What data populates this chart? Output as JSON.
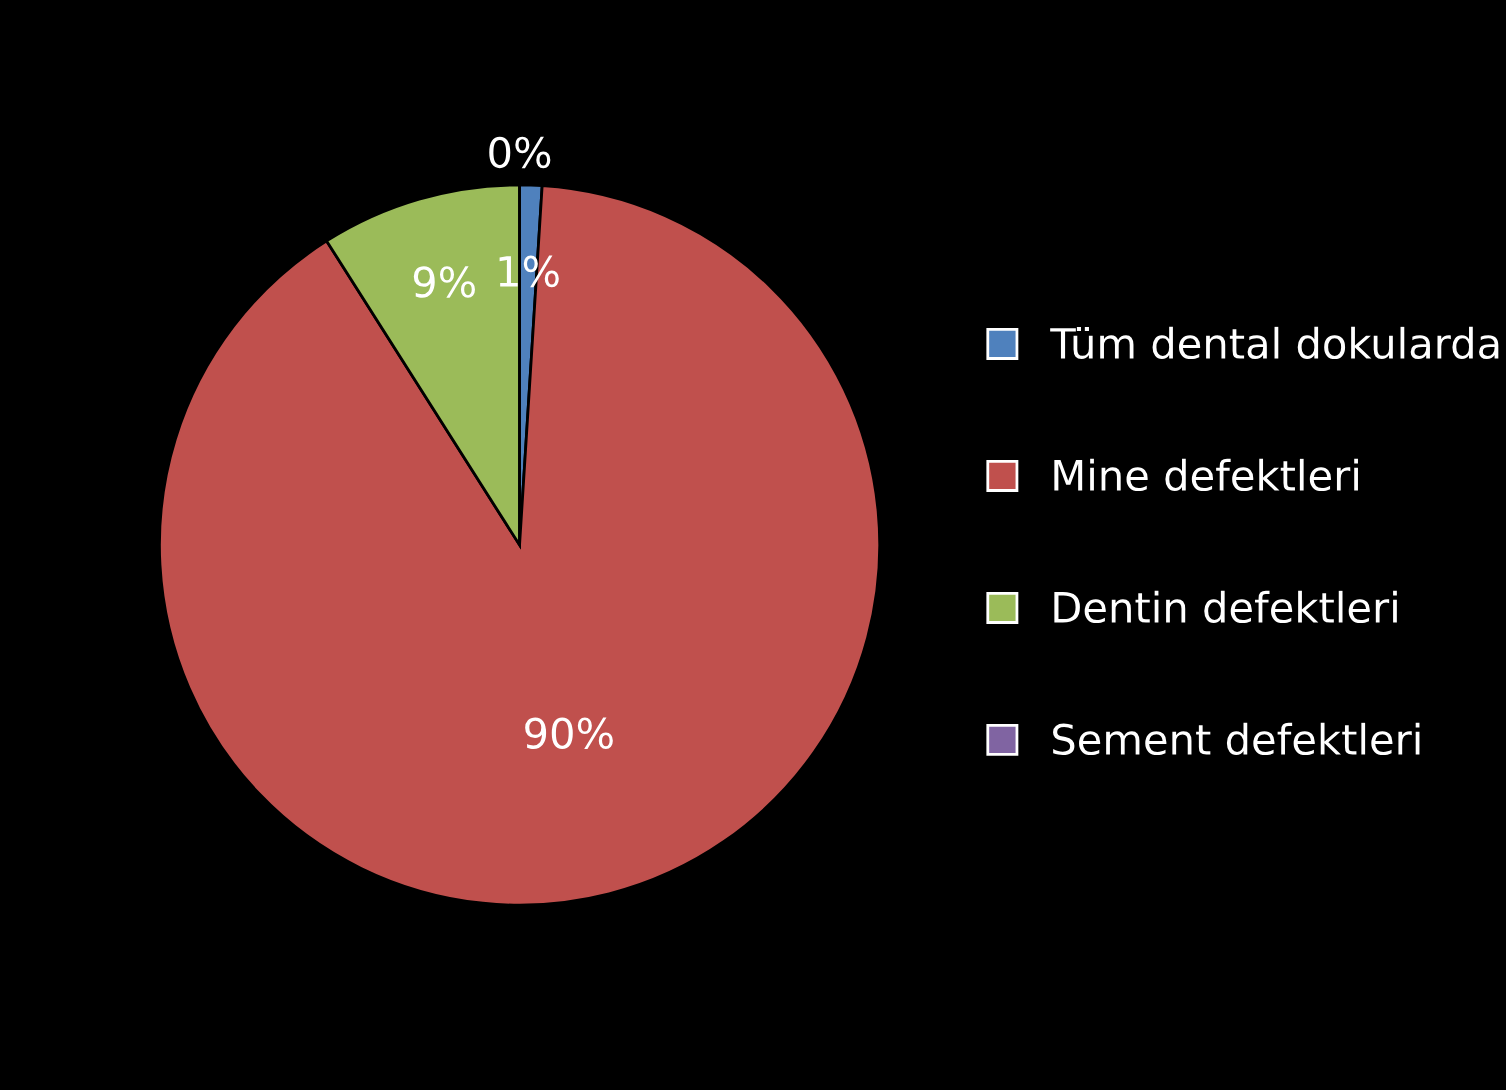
{
  "chart_data": {
    "type": "pie",
    "categories": [
      "Tüm dental dokularda",
      "Mine defektleri",
      "Dentin defektleri",
      "Sement defektleri"
    ],
    "values": [
      1,
      90,
      9,
      0
    ],
    "value_labels": [
      "1%",
      "90%",
      "9%",
      "0%"
    ],
    "colors": [
      "#4f81bd",
      "#c0504d",
      "#9bbb59",
      "#8064a2"
    ],
    "legend": "right"
  }
}
